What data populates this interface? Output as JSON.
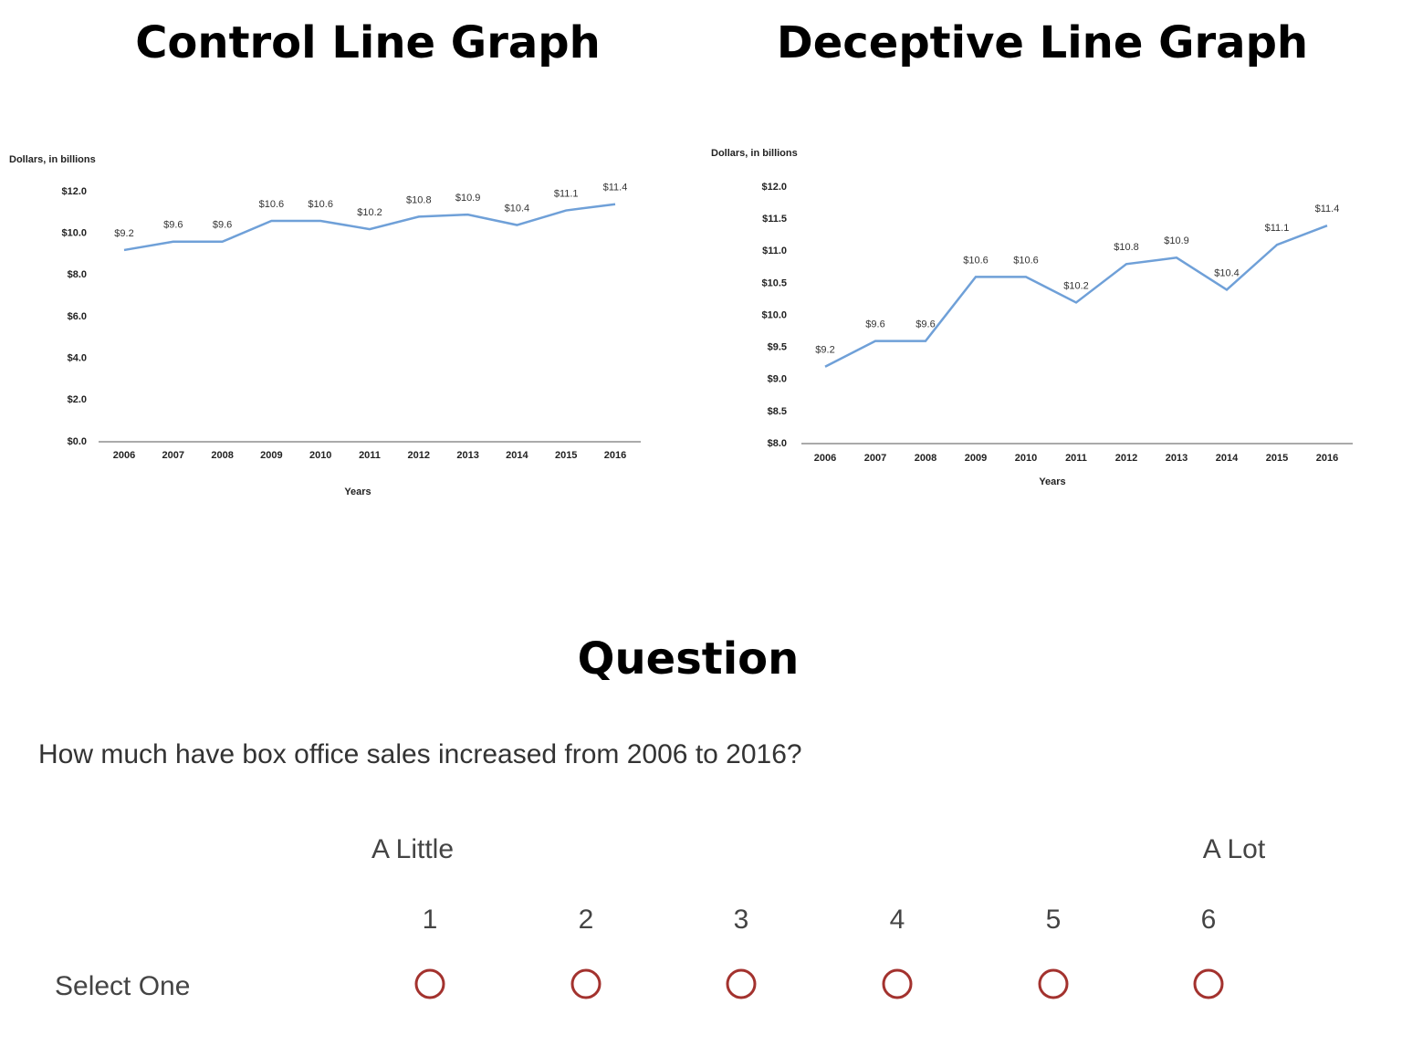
{
  "chart_data": [
    {
      "type": "line",
      "title": "Control Line Graph",
      "y_label": "Dollars, in billions",
      "x_label": "Years",
      "categories": [
        "2006",
        "2007",
        "2008",
        "2009",
        "2010",
        "2011",
        "2012",
        "2013",
        "2014",
        "2015",
        "2016"
      ],
      "values": [
        9.2,
        9.6,
        9.6,
        10.6,
        10.6,
        10.2,
        10.8,
        10.9,
        10.4,
        11.1,
        11.4
      ],
      "value_labels": [
        "$9.2",
        "$9.6",
        "$9.6",
        "$10.6",
        "$10.6",
        "$10.2",
        "$10.8",
        "$10.9",
        "$10.4",
        "$11.1",
        "$11.4"
      ],
      "color": "#6fa0d8",
      "ylim": [
        0,
        12
      ],
      "yticks": [
        {
          "value": 0,
          "label": "$0.0"
        },
        {
          "value": 2,
          "label": "$2.0"
        },
        {
          "value": 4,
          "label": "$4.0"
        },
        {
          "value": 6,
          "label": "$6.0"
        },
        {
          "value": 8,
          "label": "$8.0"
        },
        {
          "value": 10,
          "label": "$10.0"
        },
        {
          "value": 12,
          "label": "$12.0"
        }
      ]
    },
    {
      "type": "line",
      "title": "Deceptive Line Graph",
      "y_label": "Dollars, in billions",
      "x_label": "Years",
      "categories": [
        "2006",
        "2007",
        "2008",
        "2009",
        "2010",
        "2011",
        "2012",
        "2013",
        "2014",
        "2015",
        "2016"
      ],
      "values": [
        9.2,
        9.6,
        9.6,
        10.6,
        10.6,
        10.2,
        10.8,
        10.9,
        10.4,
        11.1,
        11.4
      ],
      "value_labels": [
        "$9.2",
        "$9.6",
        "$9.6",
        "$10.6",
        "$10.6",
        "$10.2",
        "$10.8",
        "$10.9",
        "$10.4",
        "$11.1",
        "$11.4"
      ],
      "color": "#6fa0d8",
      "ylim": [
        8,
        12
      ],
      "yticks": [
        {
          "value": 8,
          "label": "$8.0"
        },
        {
          "value": 8.5,
          "label": "$8.5"
        },
        {
          "value": 9,
          "label": "$9.0"
        },
        {
          "value": 9.5,
          "label": "$9.5"
        },
        {
          "value": 10,
          "label": "$10.0"
        },
        {
          "value": 10.5,
          "label": "$10.5"
        },
        {
          "value": 11,
          "label": "$11.0"
        },
        {
          "value": 11.5,
          "label": "$11.5"
        },
        {
          "value": 12,
          "label": "$12.0"
        }
      ]
    }
  ],
  "question": {
    "title": "Question",
    "text": "How much have box office sales increased from 2006 to 2016?",
    "scale_low": "A Little",
    "scale_high": "A Lot",
    "options": [
      1,
      2,
      3,
      4,
      5,
      6
    ],
    "row_label": "Select One"
  }
}
